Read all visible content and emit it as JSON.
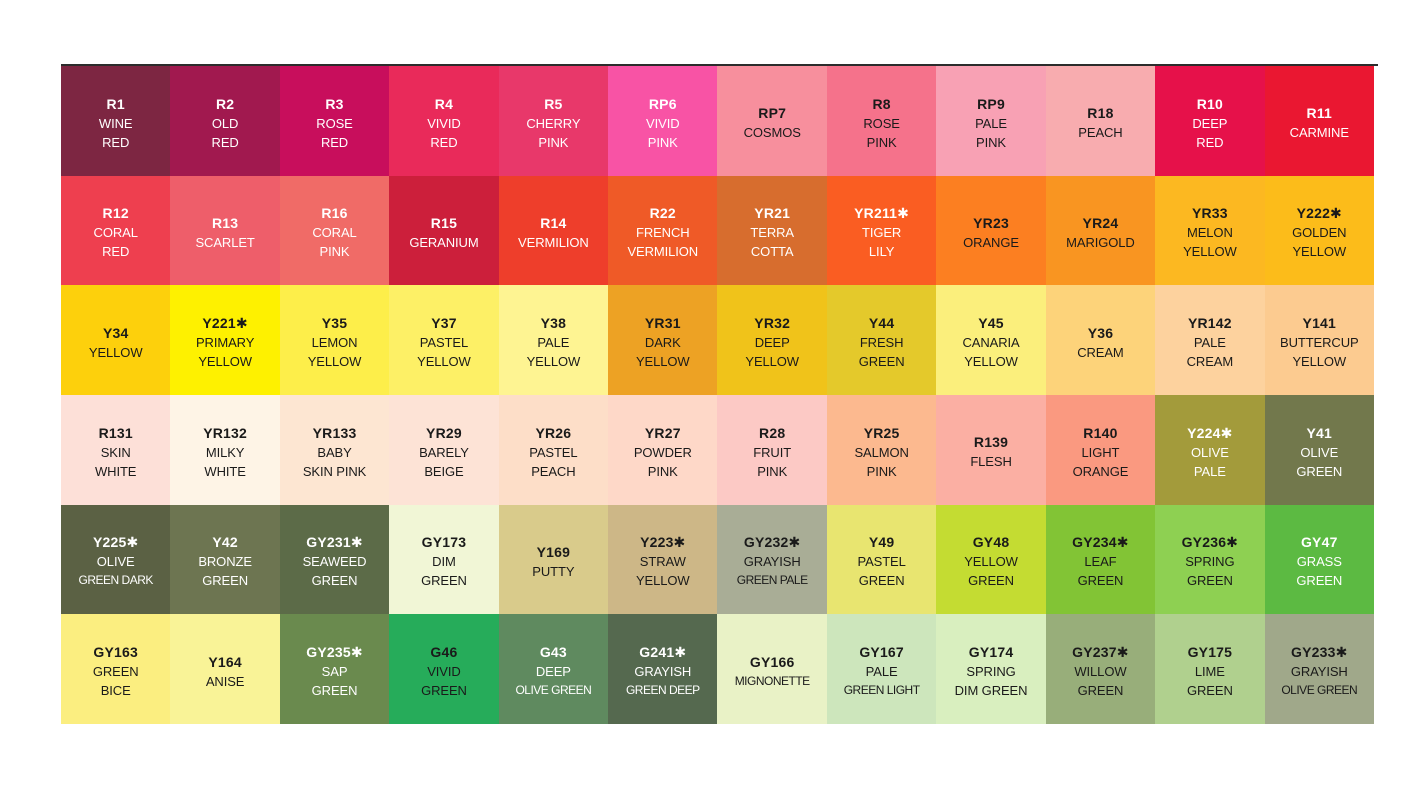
{
  "swatches": [
    {
      "code": "R1",
      "lines": [
        "WINE",
        "RED"
      ],
      "color": "#7d2642",
      "text": "dark"
    },
    {
      "code": "R2",
      "lines": [
        "OLD",
        "RED"
      ],
      "color": "#a1194f",
      "text": "dark"
    },
    {
      "code": "R3",
      "lines": [
        "ROSE",
        "RED"
      ],
      "color": "#c80e5c",
      "text": "dark"
    },
    {
      "code": "R4",
      "lines": [
        "VIVID",
        "RED"
      ],
      "color": "#e92a5a",
      "text": "dark"
    },
    {
      "code": "R5",
      "lines": [
        "CHERRY",
        "PINK"
      ],
      "color": "#e8386a",
      "text": "dark"
    },
    {
      "code": "RP6",
      "lines": [
        "VIVID",
        "PINK"
      ],
      "color": "#f853a5",
      "text": "dark"
    },
    {
      "code": "RP7",
      "lines": [
        "COSMOS"
      ],
      "color": "#f78f9d",
      "text": "light"
    },
    {
      "code": "R8",
      "lines": [
        "ROSE",
        "PINK"
      ],
      "color": "#f5728b",
      "text": "light"
    },
    {
      "code": "RP9",
      "lines": [
        "PALE",
        "PINK"
      ],
      "color": "#f8a1b4",
      "text": "light"
    },
    {
      "code": "R18",
      "lines": [
        "PEACH"
      ],
      "color": "#f8acaf",
      "text": "light"
    },
    {
      "code": "R10",
      "lines": [
        "DEEP",
        "RED"
      ],
      "color": "#e6114a",
      "text": "dark"
    },
    {
      "code": "R11",
      "lines": [
        "CARMINE"
      ],
      "color": "#ea1731",
      "text": "dark"
    },
    {
      "code": "R12",
      "lines": [
        "CORAL",
        "RED"
      ],
      "color": "#ee3f4f",
      "text": "dark"
    },
    {
      "code": "R13",
      "lines": [
        "SCARLET"
      ],
      "color": "#ee5e6a",
      "text": "dark"
    },
    {
      "code": "R16",
      "lines": [
        "CORAL",
        "PINK"
      ],
      "color": "#f06b67",
      "text": "dark"
    },
    {
      "code": "R15",
      "lines": [
        "GERANIUM"
      ],
      "color": "#cc1f3b",
      "text": "dark"
    },
    {
      "code": "R14",
      "lines": [
        "VERMILION"
      ],
      "color": "#ee3e2b",
      "text": "dark"
    },
    {
      "code": "R22",
      "lines": [
        "FRENCH",
        "VERMILION"
      ],
      "color": "#ef5a27",
      "text": "dark"
    },
    {
      "code": "YR21",
      "lines": [
        "TERRA",
        "COTTA"
      ],
      "color": "#d76d2e",
      "text": "dark"
    },
    {
      "code": "YR211✱",
      "lines": [
        "TIGER",
        "LILY"
      ],
      "color": "#fa5d22",
      "text": "dark"
    },
    {
      "code": "YR23",
      "lines": [
        "ORANGE"
      ],
      "color": "#fc7f21",
      "text": "light"
    },
    {
      "code": "YR24",
      "lines": [
        "MARIGOLD"
      ],
      "color": "#f99521",
      "text": "light"
    },
    {
      "code": "YR33",
      "lines": [
        "MELON",
        "YELLOW"
      ],
      "color": "#fcb821",
      "text": "light"
    },
    {
      "code": "Y222✱",
      "lines": [
        "GOLDEN",
        "YELLOW"
      ],
      "color": "#fcbc1a",
      "text": "light"
    },
    {
      "code": "Y34",
      "lines": [
        "YELLOW"
      ],
      "color": "#fdd00c",
      "text": "light"
    },
    {
      "code": "Y221✱",
      "lines": [
        "PRIMARY",
        "YELLOW"
      ],
      "color": "#fef100",
      "text": "light"
    },
    {
      "code": "Y35",
      "lines": [
        "LEMON",
        "YELLOW"
      ],
      "color": "#fdee4a",
      "text": "light"
    },
    {
      "code": "Y37",
      "lines": [
        "PASTEL",
        "YELLOW"
      ],
      "color": "#fdf066",
      "text": "light"
    },
    {
      "code": "Y38",
      "lines": [
        "PALE",
        "YELLOW"
      ],
      "color": "#fef492",
      "text": "light"
    },
    {
      "code": "YR31",
      "lines": [
        "DARK",
        "YELLOW"
      ],
      "color": "#eda224",
      "text": "light"
    },
    {
      "code": "YR32",
      "lines": [
        "DEEP",
        "YELLOW"
      ],
      "color": "#f0c31a",
      "text": "light"
    },
    {
      "code": "Y44",
      "lines": [
        "FRESH",
        "GREEN"
      ],
      "color": "#e4c92b",
      "text": "light"
    },
    {
      "code": "Y45",
      "lines": [
        "CANARIA",
        "YELLOW"
      ],
      "color": "#fbef7c",
      "text": "light"
    },
    {
      "code": "Y36",
      "lines": [
        "CREAM"
      ],
      "color": "#fdd37a",
      "text": "light"
    },
    {
      "code": "YR142",
      "lines": [
        "PALE",
        "CREAM"
      ],
      "color": "#fdd29e",
      "text": "light"
    },
    {
      "code": "Y141",
      "lines": [
        "BUTTERCUP",
        "YELLOW"
      ],
      "color": "#fccb90",
      "text": "light"
    },
    {
      "code": "R131",
      "lines": [
        "SKIN",
        "WHITE"
      ],
      "color": "#fde0d8",
      "text": "light"
    },
    {
      "code": "YR132",
      "lines": [
        "MILKY",
        "WHITE"
      ],
      "color": "#fef4e6",
      "text": "light"
    },
    {
      "code": "YR133",
      "lines": [
        "BABY",
        "SKIN PINK"
      ],
      "color": "#fde6d2",
      "text": "light"
    },
    {
      "code": "YR29",
      "lines": [
        "BARELY",
        "BEIGE"
      ],
      "color": "#fde3d6",
      "text": "light"
    },
    {
      "code": "YR26",
      "lines": [
        "PASTEL",
        "PEACH"
      ],
      "color": "#fddec8",
      "text": "light"
    },
    {
      "code": "YR27",
      "lines": [
        "POWDER",
        "PINK"
      ],
      "color": "#fed8c8",
      "text": "light"
    },
    {
      "code": "R28",
      "lines": [
        "FRUIT",
        "PINK"
      ],
      "color": "#fcc9c5",
      "text": "light"
    },
    {
      "code": "YR25",
      "lines": [
        "SALMON",
        "PINK"
      ],
      "color": "#fcb98f",
      "text": "light"
    },
    {
      "code": "R139",
      "lines": [
        "FLESH"
      ],
      "color": "#fbafa3",
      "text": "light"
    },
    {
      "code": "R140",
      "lines": [
        "LIGHT",
        "ORANGE"
      ],
      "color": "#fa9980",
      "text": "light"
    },
    {
      "code": "Y224✱",
      "lines": [
        "OLIVE",
        "PALE"
      ],
      "color": "#a39b3b",
      "text": "dark"
    },
    {
      "code": "Y41",
      "lines": [
        "OLIVE",
        "GREEN"
      ],
      "color": "#72784c",
      "text": "dark"
    },
    {
      "code": "Y225✱",
      "lines": [
        "OLIVE",
        "GREEN DARK"
      ],
      "color": "#5b6144",
      "text": "dark"
    },
    {
      "code": "Y42",
      "lines": [
        "BRONZE",
        "GREEN"
      ],
      "color": "#6d7551",
      "text": "dark"
    },
    {
      "code": "GY231✱",
      "lines": [
        "SEAWEED",
        "GREEN"
      ],
      "color": "#5c6b48",
      "text": "dark"
    },
    {
      "code": "GY173",
      "lines": [
        "DIM",
        "GREEN"
      ],
      "color": "#f1f6d6",
      "text": "light"
    },
    {
      "code": "Y169",
      "lines": [
        "PUTTY"
      ],
      "color": "#d9cb8b",
      "text": "light"
    },
    {
      "code": "Y223✱",
      "lines": [
        "STRAW",
        "YELLOW"
      ],
      "color": "#cdb787",
      "text": "light"
    },
    {
      "code": "GY232✱",
      "lines": [
        "GRAYISH",
        "GREEN PALE"
      ],
      "color": "#a9ad96",
      "text": "light"
    },
    {
      "code": "Y49",
      "lines": [
        "PASTEL",
        "GREEN"
      ],
      "color": "#e8e570",
      "text": "light"
    },
    {
      "code": "GY48",
      "lines": [
        "YELLOW",
        "GREEN"
      ],
      "color": "#c4dc32",
      "text": "light"
    },
    {
      "code": "GY234✱",
      "lines": [
        "LEAF",
        "GREEN"
      ],
      "color": "#82c435",
      "text": "light"
    },
    {
      "code": "GY236✱",
      "lines": [
        "SPRING",
        "GREEN"
      ],
      "color": "#8ed052",
      "text": "light"
    },
    {
      "code": "GY47",
      "lines": [
        "GRASS",
        "GREEN"
      ],
      "color": "#5cba42",
      "text": "dark"
    },
    {
      "code": "GY163",
      "lines": [
        "GREEN",
        "BICE"
      ],
      "color": "#fbee80",
      "text": "light"
    },
    {
      "code": "Y164",
      "lines": [
        "ANISE"
      ],
      "color": "#f9f397",
      "text": "light"
    },
    {
      "code": "GY235✱",
      "lines": [
        "SAP",
        "GREEN"
      ],
      "color": "#6a8a4e",
      "text": "dark"
    },
    {
      "code": "G46",
      "lines": [
        "VIVID",
        "GREEN"
      ],
      "color": "#26ac5a",
      "text": "light"
    },
    {
      "code": "G43",
      "lines": [
        "DEEP",
        "OLIVE GREEN"
      ],
      "color": "#5f8a5f",
      "text": "dark"
    },
    {
      "code": "G241✱",
      "lines": [
        "GRAYISH",
        "GREEN DEEP"
      ],
      "color": "#55694f",
      "text": "dark"
    },
    {
      "code": "GY166",
      "lines": [
        "MIGNONETTE"
      ],
      "color": "#e9f2c6",
      "text": "light"
    },
    {
      "code": "GY167",
      "lines": [
        "PALE",
        "GREEN LIGHT"
      ],
      "color": "#cde6bc",
      "text": "light"
    },
    {
      "code": "GY174",
      "lines": [
        "SPRING",
        "DIM GREEN"
      ],
      "color": "#d9efbf",
      "text": "light"
    },
    {
      "code": "GY237✱",
      "lines": [
        "WILLOW",
        "GREEN"
      ],
      "color": "#98ae7a",
      "text": "light"
    },
    {
      "code": "GY175",
      "lines": [
        "LIME",
        "GREEN"
      ],
      "color": "#b0d08e",
      "text": "light"
    },
    {
      "code": "GY233✱",
      "lines": [
        "GRAYISH",
        "OLIVE GREEN"
      ],
      "color": "#a0a88a",
      "text": "light"
    }
  ]
}
